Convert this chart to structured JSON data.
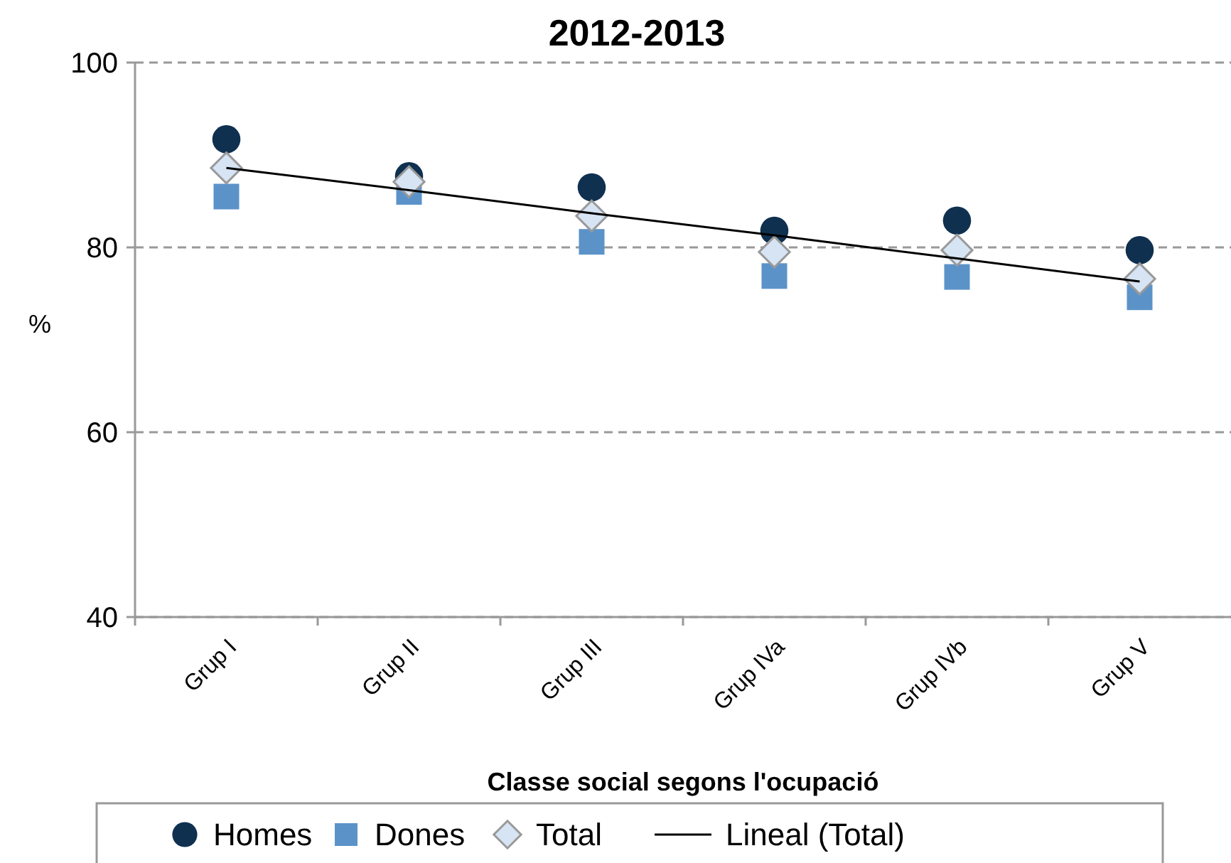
{
  "chart_data": {
    "type": "scatter",
    "title": "2012-2013",
    "xlabel": "Classe social segons l'ocupació",
    "ylabel": "%",
    "categories": [
      "Grup I",
      "Grup II",
      "Grup III",
      "Grup IVa",
      "Grup IVb",
      "Grup V"
    ],
    "series": [
      {
        "name": "Homes",
        "color": "#10304f",
        "marker": "circle",
        "values": [
          91.7,
          87.7,
          86.5,
          81.8,
          82.9,
          79.7
        ]
      },
      {
        "name": "Dones",
        "color": "#5b93c9",
        "marker": "square",
        "values": [
          85.5,
          86.0,
          80.6,
          76.9,
          76.8,
          74.6
        ]
      },
      {
        "name": "Total",
        "color": "#d6e4f4",
        "marker": "diamond",
        "values": [
          88.6,
          87.1,
          83.4,
          79.5,
          79.7,
          76.6
        ]
      },
      {
        "name": "Lineal (Total)",
        "type": "line",
        "color": "#000000",
        "marker": "none",
        "values": [
          88.6,
          86.2,
          83.7,
          81.3,
          78.8,
          76.3
        ]
      }
    ],
    "ylim": [
      40,
      100
    ],
    "yticks": [
      40,
      60,
      80,
      100
    ],
    "grid": "y",
    "legend": "bottom"
  }
}
